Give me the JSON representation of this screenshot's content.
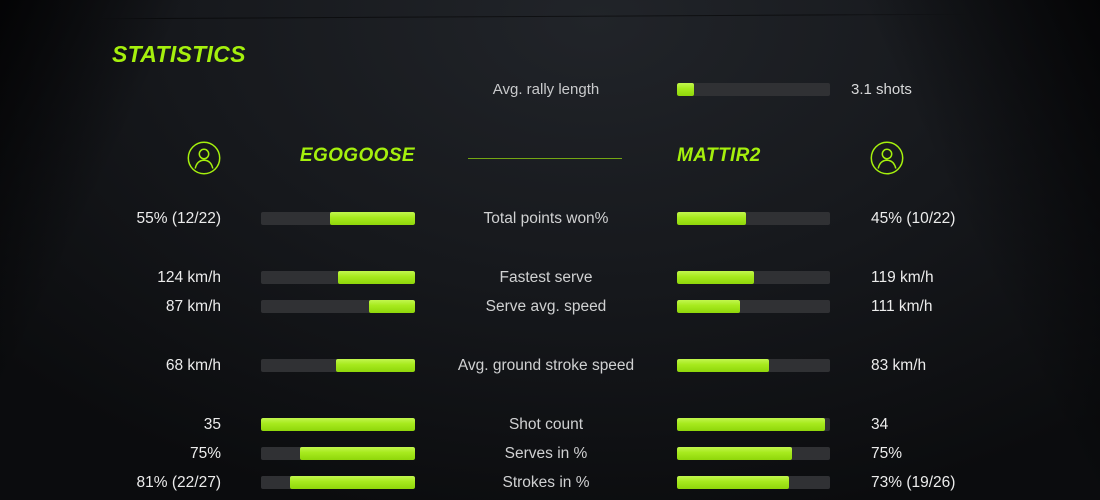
{
  "title": "STATISTICS",
  "colors": {
    "accent": "#a5f00d",
    "bar_fill": "#a7ea1e",
    "bar_track": "#303134",
    "value_text": "#ececec",
    "label_text": "#d0d1d2"
  },
  "rally": {
    "label": "Avg. rally length",
    "value": "3.1 shots",
    "fill_pct": 11
  },
  "players": {
    "left": {
      "name": "EGOGOOSE"
    },
    "right": {
      "name": "MATTIR2"
    }
  },
  "stats": [
    {
      "label": "Total points won%",
      "left_value": "55% (12/22)",
      "left_pct": 55,
      "right_value": "45% (10/22)",
      "right_pct": 45,
      "gap_before": false
    },
    {
      "label": "Fastest serve",
      "left_value": "124 km/h",
      "left_pct": 50,
      "right_value": "119 km/h",
      "right_pct": 50,
      "gap_before": true
    },
    {
      "label": "Serve avg. speed",
      "left_value": "87 km/h",
      "left_pct": 30,
      "right_value": "111 km/h",
      "right_pct": 41,
      "gap_before": false
    },
    {
      "label": "Avg. ground stroke speed",
      "left_value": "68 km/h",
      "left_pct": 51,
      "right_value": "83 km/h",
      "right_pct": 60,
      "gap_before": true
    },
    {
      "label": "Shot count",
      "left_value": "35",
      "left_pct": 100,
      "right_value": "34",
      "right_pct": 97,
      "gap_before": true
    },
    {
      "label": "Serves in %",
      "left_value": "75%",
      "left_pct": 75,
      "right_value": "75%",
      "right_pct": 75,
      "gap_before": false
    },
    {
      "label": "Strokes in %",
      "left_value": "81% (22/27)",
      "left_pct": 81,
      "right_value": "73% (19/26)",
      "right_pct": 73,
      "gap_before": false
    }
  ]
}
